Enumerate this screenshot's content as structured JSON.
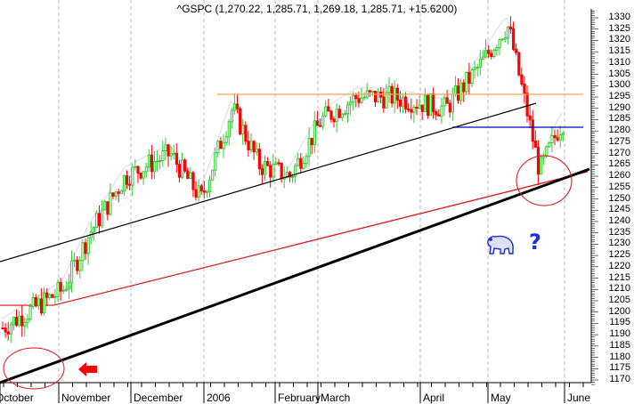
{
  "header": {
    "title": "^GSPC (1,270.22, 1,285.71, 1,269.18, 1,285.71, +15.6200)"
  },
  "annotations": {
    "question_mark": "?",
    "bear_icon": "bear-icon",
    "arrow_icon": "left-arrow-icon"
  },
  "colors": {
    "up_candle": "#33cc33",
    "down_candle": "#ff0000",
    "resistance_line": "#f5a553",
    "support_line": "#0000cc",
    "trendline": "#000000",
    "moving_average": "#dd1111",
    "short_ma": "#ccccee",
    "annotation_blue": "#1f2fd0"
  },
  "chart_data": {
    "type": "candlestick",
    "title": "^GSPC (1,270.22, 1,285.71, 1,269.18, 1,285.71, +15.6200)",
    "symbol": "^GSPC",
    "last_bar": {
      "open": 1270.22,
      "high": 1285.71,
      "low": 1269.18,
      "close": 1285.71,
      "change": 15.62
    },
    "xlabel": "",
    "ylabel": "",
    "ylim": [
      1170,
      1330
    ],
    "yticks": [
      1330,
      1325,
      1320,
      1315,
      1310,
      1305,
      1300,
      1295,
      1290,
      1285,
      1280,
      1275,
      1270,
      1265,
      1260,
      1255,
      1250,
      1245,
      1240,
      1235,
      1230,
      1225,
      1220,
      1215,
      1210,
      1205,
      1200,
      1195,
      1190,
      1185,
      1180,
      1175,
      1170
    ],
    "xticks": [
      "October",
      "November",
      "December",
      "2006",
      "February",
      "March",
      "April",
      "May",
      "June"
    ],
    "grid": "vertical dashed at month boundaries",
    "approx_closes_by_period": [
      {
        "period": "Oct (late)",
        "range": [
          1175,
          1205
        ],
        "close": 1195
      },
      {
        "period": "Nov start",
        "close": 1210
      },
      {
        "period": "Nov mid",
        "close": 1235
      },
      {
        "period": "Nov end",
        "close": 1260
      },
      {
        "period": "Dec mid",
        "close": 1270
      },
      {
        "period": "Dec end",
        "close": 1250
      },
      {
        "period": "Jan mid",
        "close": 1290
      },
      {
        "period": "Jan end",
        "close": 1265
      },
      {
        "period": "Feb mid",
        "close": 1260
      },
      {
        "period": "Feb end",
        "close": 1285
      },
      {
        "period": "Mar mid",
        "close": 1295
      },
      {
        "period": "Mar end",
        "close": 1295
      },
      {
        "period": "Apr mid",
        "close": 1290
      },
      {
        "period": "Apr end",
        "close": 1310
      },
      {
        "period": "May 5",
        "close": 1325
      },
      {
        "period": "May 8",
        "close": 1326
      },
      {
        "period": "May mid",
        "close": 1290
      },
      {
        "period": "May 22",
        "close": 1262
      },
      {
        "period": "May 26",
        "close": 1280
      },
      {
        "period": "Jun 1",
        "close": 1285.71
      }
    ],
    "overlays": [
      {
        "name": "Resistance (horizontal)",
        "color": "#f5a553",
        "value": 1295
      },
      {
        "name": "Support (horizontal)",
        "color": "#0000cc",
        "value": 1281,
        "from": "April"
      },
      {
        "name": "Upper trendline",
        "color": "#000000",
        "from": [
          0,
          1222
        ],
        "to": [
          "May mid",
          1291
        ]
      },
      {
        "name": "Lower trendline (bold)",
        "color": "#000000",
        "from": [
          0,
          1170
        ],
        "to": [
          "June",
          1262
        ]
      },
      {
        "name": "200-day MA",
        "color": "#dd1111",
        "from": 1203,
        "to": 1262
      }
    ],
    "annotations": [
      "Red circle around Oct low near lower trendline",
      "Red left-pointing arrow",
      "Red circle around late-May low near lower trendline",
      "Blue bear icon with question mark"
    ]
  }
}
